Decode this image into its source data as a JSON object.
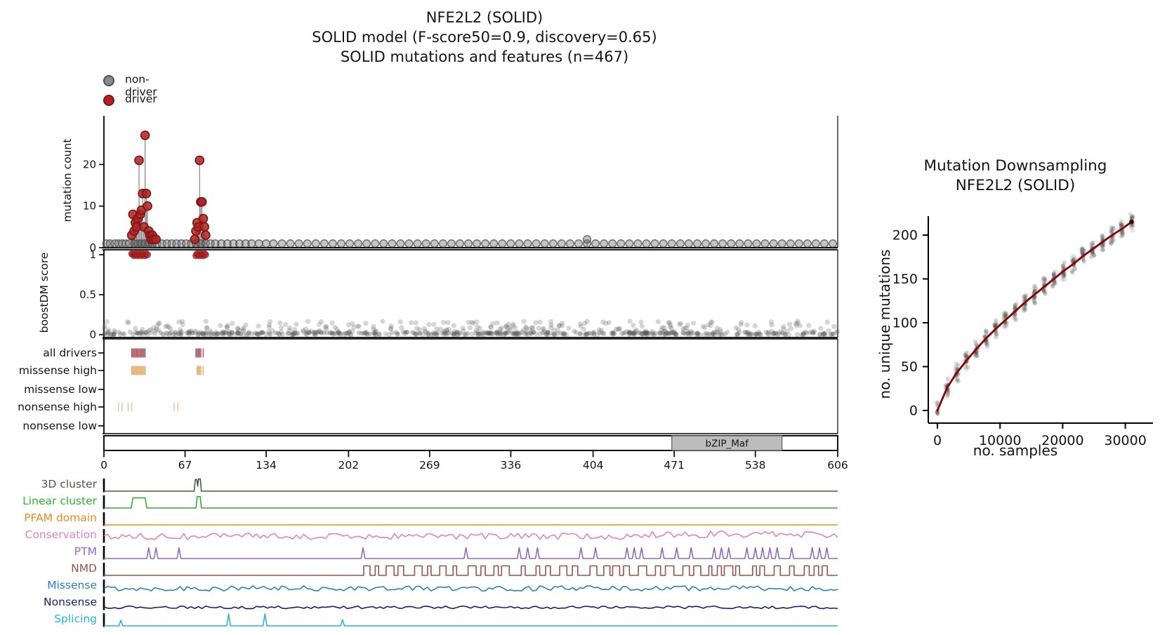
{
  "header": {
    "title_lines": [
      "NFE2L2 (SOLID)",
      "SOLID model (F-score50=0.9, discovery=0.65)",
      "SOLID mutations and features (n=467)"
    ]
  },
  "legend": {
    "items": [
      {
        "label": "non-driver",
        "color": "#8a8a8a",
        "edge": "#4f4f4f"
      },
      {
        "label": "driver",
        "color": "#b22222",
        "edge": "#7c1616"
      }
    ]
  },
  "colors": {
    "driver": "#b22222",
    "driver_edge": "#7c1616",
    "non_driver": "#7f7f7f",
    "non_driver_edge": "#4a4a4a",
    "stem": "#4a4a4a",
    "curve": "#8b0000",
    "scatter_gray": "#666666",
    "domain_fill": "#bcbcbc",
    "domain_edge": "#5a5a5a"
  },
  "chart_data": [
    {
      "id": "mutation-needle",
      "type": "scatter",
      "ylabel": "mutation count",
      "yticks": [
        0,
        10,
        20
      ],
      "ylim": [
        0,
        29
      ],
      "xlim": [
        0,
        606
      ],
      "drivers": [
        [
          23,
          3
        ],
        [
          24,
          8
        ],
        [
          25,
          4
        ],
        [
          26,
          6
        ],
        [
          27,
          5
        ],
        [
          28,
          7
        ],
        [
          29,
          21
        ],
        [
          30,
          8
        ],
        [
          31,
          9
        ],
        [
          32,
          13
        ],
        [
          33,
          5
        ],
        [
          34,
          27
        ],
        [
          35,
          13
        ],
        [
          36,
          10
        ],
        [
          37,
          4
        ],
        [
          38,
          3
        ],
        [
          39,
          2
        ],
        [
          40,
          3
        ],
        [
          41,
          2
        ],
        [
          43,
          2
        ],
        [
          75,
          2
        ],
        [
          76,
          4
        ],
        [
          77,
          6
        ],
        [
          78,
          5
        ],
        [
          79,
          21
        ],
        [
          80,
          11
        ],
        [
          81,
          11
        ],
        [
          82,
          7
        ],
        [
          83,
          5
        ],
        [
          84,
          3
        ]
      ],
      "non_driver_height": 1,
      "non_drivers": [
        2,
        5,
        9,
        12,
        15,
        18,
        21,
        25,
        28,
        31,
        34,
        37,
        40,
        44,
        48,
        52,
        56,
        60,
        64,
        68,
        72,
        76,
        80,
        84,
        88,
        92,
        97,
        102,
        107,
        112,
        117,
        122,
        128,
        134,
        140,
        147,
        154,
        161,
        168,
        175,
        182,
        189,
        196,
        203,
        210,
        217,
        224,
        231,
        238,
        245,
        252,
        259,
        266,
        273,
        280,
        287,
        294,
        301,
        308,
        315,
        322,
        329,
        336,
        343,
        350,
        357,
        364,
        371,
        378,
        385,
        392,
        399,
        406,
        413,
        420,
        427,
        434,
        441,
        448,
        455,
        462,
        469,
        476,
        483,
        490,
        497,
        504,
        511,
        518,
        525,
        532,
        539,
        546,
        553,
        560,
        567,
        574,
        581,
        588,
        595,
        602
      ],
      "non_driver_tall": [
        [
          399,
          2
        ]
      ]
    },
    {
      "id": "boostdm-score",
      "type": "scatter",
      "ylabel": "boostDM score",
      "yticks": [
        0,
        0.5,
        1
      ],
      "ylim": [
        0,
        1.05
      ],
      "driver_positions": [
        23,
        24,
        25,
        26,
        27,
        28,
        29,
        30,
        31,
        32,
        33,
        34,
        35,
        36,
        76,
        77,
        78,
        79,
        80,
        81,
        82,
        83,
        84
      ],
      "background": {
        "count": 420,
        "dense_count": 320,
        "score_max": 0.17,
        "seed": 7
      }
    },
    {
      "id": "driver-classes",
      "type": "rug",
      "rows": [
        {
          "label": "all drivers",
          "color": "#a2474b",
          "ticks": [
            23,
            24,
            25,
            26,
            27,
            28,
            29,
            30,
            31,
            32,
            33,
            34,
            76,
            77,
            78,
            79,
            80,
            82
          ]
        },
        {
          "label": "missense high",
          "color": "#dfa65f",
          "ticks": [
            23,
            24,
            25,
            26,
            27,
            28,
            29,
            30,
            31,
            32,
            33,
            34,
            77,
            78,
            79,
            80,
            82
          ]
        },
        {
          "label": "missense low",
          "color": "#dfa65f",
          "ticks": []
        },
        {
          "label": "nonsense high",
          "color": "#e7c087",
          "ticks": [
            12,
            15,
            20,
            23,
            58,
            61
          ]
        },
        {
          "label": "nonsense low",
          "color": "#e7c087",
          "ticks": []
        }
      ]
    },
    {
      "id": "protein-domains",
      "type": "domain_bar",
      "length": 606,
      "domains": [
        {
          "label": "bZIP_Maf",
          "start": 469,
          "end": 560
        }
      ],
      "xticks": [
        0,
        67,
        134,
        202,
        269,
        336,
        404,
        471,
        538,
        606
      ]
    },
    {
      "id": "feature-tracks",
      "type": "line_tracks",
      "seed": 13,
      "tracks": [
        {
          "label": "3D cluster",
          "color": "#42603c",
          "shape": "poly",
          "points": [
            [
              0,
              0
            ],
            [
              74.5,
              0
            ],
            [
              75.5,
              0.92
            ],
            [
              76.8,
              0.92
            ],
            [
              77.4,
              0.4
            ],
            [
              78.2,
              0.97
            ],
            [
              79.6,
              0.97
            ],
            [
              80.5,
              0
            ],
            [
              606,
              0
            ]
          ]
        },
        {
          "label": "Linear cluster",
          "color": "#2fb22f",
          "shape": "poly",
          "points": [
            [
              0,
              0
            ],
            [
              22.5,
              0
            ],
            [
              24,
              0.8
            ],
            [
              34,
              0.8
            ],
            [
              35.5,
              0
            ],
            [
              76,
              0
            ],
            [
              77,
              0.9
            ],
            [
              79.5,
              0.9
            ],
            [
              80.5,
              0
            ],
            [
              606,
              0
            ]
          ]
        },
        {
          "label": "PFAM domain",
          "color": "#f8861b",
          "shape": "flat"
        },
        {
          "label": "Conservation",
          "color": "#e57fc4",
          "shape": "noise",
          "base": 0.42,
          "amp": 0.5,
          "base2": 0.58,
          "amp2": 0.55,
          "split": 440
        },
        {
          "label": "PTM",
          "color": "#9468bd",
          "shape": "spikes",
          "spike_h": 0.85,
          "spikes": [
            37,
            43,
            62,
            214,
            299,
            343,
            350,
            358,
            394,
            406,
            432,
            438,
            444,
            461,
            473,
            485,
            504,
            510,
            516,
            531,
            538,
            544,
            550,
            556,
            568,
            585,
            591,
            597
          ]
        },
        {
          "label": "NMD",
          "color": "#95544d",
          "shape": "square_noise",
          "start": 205,
          "h": 0.75
        },
        {
          "label": "Missense",
          "color": "#2d7fc1",
          "shape": "noise",
          "base": 0.3,
          "amp": 0.42
        },
        {
          "label": "Nonsense",
          "color": "#1d1d70",
          "shape": "noise",
          "base": 0.13,
          "amp": 0.22
        },
        {
          "label": "Splicing",
          "color": "#29b7d8",
          "shape": "spikes",
          "spikes": [
            14,
            103,
            133,
            197
          ],
          "spike_hs": [
            0.45,
            0.95,
            0.95,
            0.5
          ]
        }
      ]
    },
    {
      "id": "mutation-downsampling",
      "type": "scatter",
      "title_lines": [
        "Mutation Downsampling",
        "NFE2L2 (SOLID)"
      ],
      "xlabel": "no. samples",
      "ylabel": "no. unique mutations",
      "xticks": [
        0,
        10000,
        20000,
        30000
      ],
      "yticks": [
        0,
        50,
        100,
        150,
        200
      ],
      "xlim": [
        0,
        31500
      ],
      "ylim": [
        0,
        225
      ],
      "mean_curve": [
        [
          0,
          0
        ],
        [
          1550,
          26
        ],
        [
          3100,
          43
        ],
        [
          4650,
          57
        ],
        [
          6200,
          70
        ],
        [
          7750,
          82
        ],
        [
          9300,
          93
        ],
        [
          10850,
          103
        ],
        [
          12400,
          113
        ],
        [
          13950,
          123
        ],
        [
          15500,
          132
        ],
        [
          17050,
          141
        ],
        [
          18600,
          150
        ],
        [
          20150,
          159
        ],
        [
          21700,
          167
        ],
        [
          23250,
          176
        ],
        [
          24800,
          184
        ],
        [
          26350,
          192
        ],
        [
          27900,
          200
        ],
        [
          29450,
          207
        ],
        [
          31000,
          215
        ]
      ],
      "scatter": {
        "points_per_cluster": 22,
        "jitter_y": 13,
        "jitter_x": 260,
        "seed": 3
      }
    }
  ]
}
